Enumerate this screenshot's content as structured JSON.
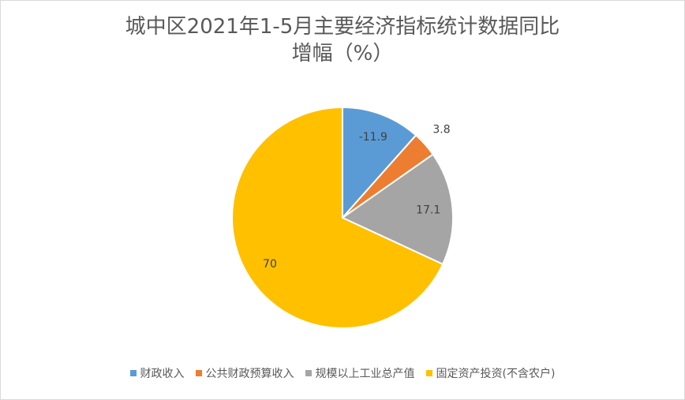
{
  "chart_data": {
    "type": "pie",
    "title": "城中区2021年1-5月主要经济指标统计数据同比增幅（%）",
    "categories": [
      "财政收入",
      "公共财政预算收入",
      "规模以上工业总产值",
      "固定资产投资(不含农户)"
    ],
    "values": [
      -11.9,
      3.8,
      17.1,
      70
    ],
    "colors": [
      "#5b9bd5",
      "#ed7d31",
      "#a5a5a5",
      "#ffc000"
    ],
    "legend": "bottom"
  }
}
